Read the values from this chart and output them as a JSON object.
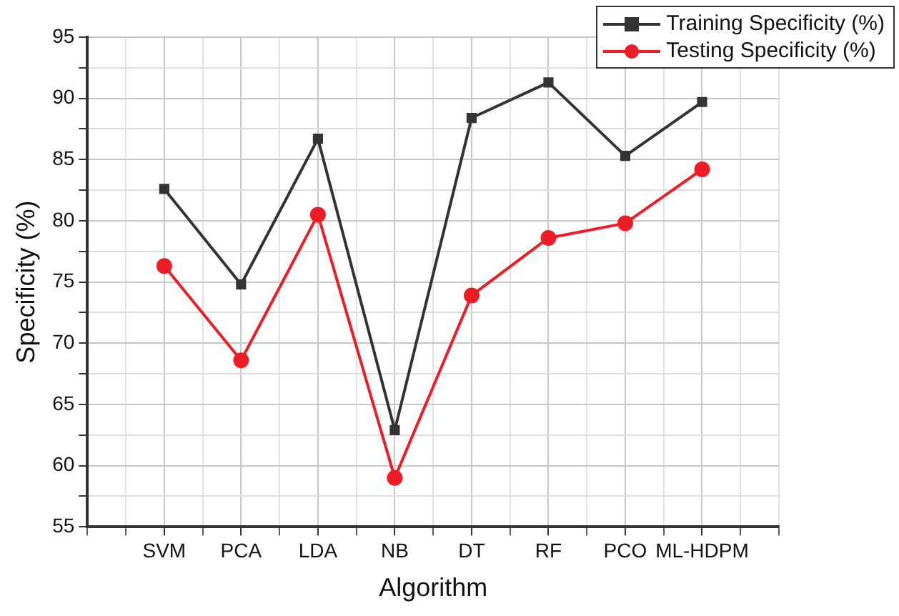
{
  "chart_data": {
    "type": "line",
    "xlabel": "Algorithm",
    "ylabel": "Specificity (%)",
    "categories": [
      "SVM",
      "PCA",
      "LDA",
      "NB",
      "DT",
      "RF",
      "PCO",
      "ML-HDPM"
    ],
    "series": [
      {
        "name": "Training Specificity (%)",
        "color": "#333333",
        "marker": "square",
        "values": [
          82.6,
          74.8,
          86.7,
          62.9,
          88.4,
          91.3,
          85.3,
          89.7
        ]
      },
      {
        "name": "Testing Specificity (%)",
        "color": "#ee1c25",
        "marker": "circle",
        "values": [
          76.3,
          68.6,
          80.5,
          59.0,
          73.9,
          78.6,
          79.8,
          84.2
        ]
      }
    ],
    "ylim": [
      55,
      95
    ],
    "yticks": [
      55,
      60,
      65,
      70,
      75,
      80,
      85,
      90,
      95
    ],
    "grid": true,
    "legend": "top right",
    "line_style": "solid"
  }
}
